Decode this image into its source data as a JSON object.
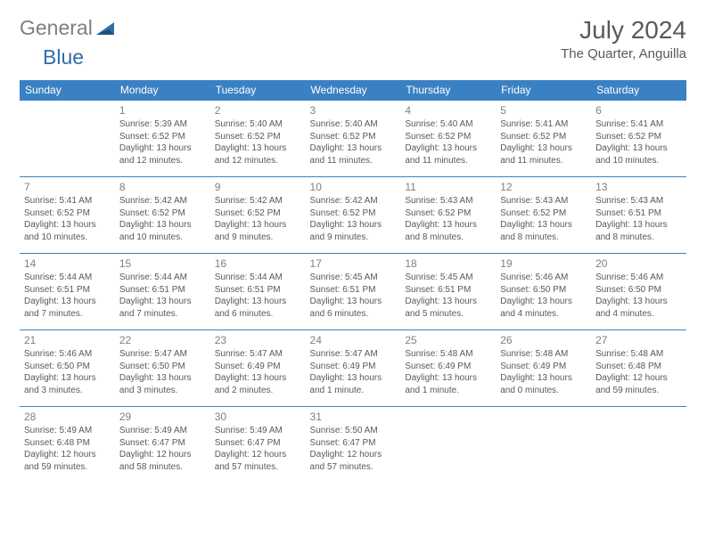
{
  "logo": {
    "word1": "General",
    "word2": "Blue"
  },
  "title": "July 2024",
  "location": "The Quarter, Anguilla",
  "colors": {
    "header_bg": "#3a81c3",
    "header_text": "#ffffff",
    "border": "#3a81c3",
    "text": "#595959",
    "daynum": "#808080",
    "logo_gray": "#7f7f7f",
    "logo_blue": "#2f6eab"
  },
  "weekdays": [
    "Sunday",
    "Monday",
    "Tuesday",
    "Wednesday",
    "Thursday",
    "Friday",
    "Saturday"
  ],
  "weeks": [
    [
      null,
      {
        "n": "1",
        "sr": "5:39 AM",
        "ss": "6:52 PM",
        "dl": "13 hours and 12 minutes."
      },
      {
        "n": "2",
        "sr": "5:40 AM",
        "ss": "6:52 PM",
        "dl": "13 hours and 12 minutes."
      },
      {
        "n": "3",
        "sr": "5:40 AM",
        "ss": "6:52 PM",
        "dl": "13 hours and 11 minutes."
      },
      {
        "n": "4",
        "sr": "5:40 AM",
        "ss": "6:52 PM",
        "dl": "13 hours and 11 minutes."
      },
      {
        "n": "5",
        "sr": "5:41 AM",
        "ss": "6:52 PM",
        "dl": "13 hours and 11 minutes."
      },
      {
        "n": "6",
        "sr": "5:41 AM",
        "ss": "6:52 PM",
        "dl": "13 hours and 10 minutes."
      }
    ],
    [
      {
        "n": "7",
        "sr": "5:41 AM",
        "ss": "6:52 PM",
        "dl": "13 hours and 10 minutes."
      },
      {
        "n": "8",
        "sr": "5:42 AM",
        "ss": "6:52 PM",
        "dl": "13 hours and 10 minutes."
      },
      {
        "n": "9",
        "sr": "5:42 AM",
        "ss": "6:52 PM",
        "dl": "13 hours and 9 minutes."
      },
      {
        "n": "10",
        "sr": "5:42 AM",
        "ss": "6:52 PM",
        "dl": "13 hours and 9 minutes."
      },
      {
        "n": "11",
        "sr": "5:43 AM",
        "ss": "6:52 PM",
        "dl": "13 hours and 8 minutes."
      },
      {
        "n": "12",
        "sr": "5:43 AM",
        "ss": "6:52 PM",
        "dl": "13 hours and 8 minutes."
      },
      {
        "n": "13",
        "sr": "5:43 AM",
        "ss": "6:51 PM",
        "dl": "13 hours and 8 minutes."
      }
    ],
    [
      {
        "n": "14",
        "sr": "5:44 AM",
        "ss": "6:51 PM",
        "dl": "13 hours and 7 minutes."
      },
      {
        "n": "15",
        "sr": "5:44 AM",
        "ss": "6:51 PM",
        "dl": "13 hours and 7 minutes."
      },
      {
        "n": "16",
        "sr": "5:44 AM",
        "ss": "6:51 PM",
        "dl": "13 hours and 6 minutes."
      },
      {
        "n": "17",
        "sr": "5:45 AM",
        "ss": "6:51 PM",
        "dl": "13 hours and 6 minutes."
      },
      {
        "n": "18",
        "sr": "5:45 AM",
        "ss": "6:51 PM",
        "dl": "13 hours and 5 minutes."
      },
      {
        "n": "19",
        "sr": "5:46 AM",
        "ss": "6:50 PM",
        "dl": "13 hours and 4 minutes."
      },
      {
        "n": "20",
        "sr": "5:46 AM",
        "ss": "6:50 PM",
        "dl": "13 hours and 4 minutes."
      }
    ],
    [
      {
        "n": "21",
        "sr": "5:46 AM",
        "ss": "6:50 PM",
        "dl": "13 hours and 3 minutes."
      },
      {
        "n": "22",
        "sr": "5:47 AM",
        "ss": "6:50 PM",
        "dl": "13 hours and 3 minutes."
      },
      {
        "n": "23",
        "sr": "5:47 AM",
        "ss": "6:49 PM",
        "dl": "13 hours and 2 minutes."
      },
      {
        "n": "24",
        "sr": "5:47 AM",
        "ss": "6:49 PM",
        "dl": "13 hours and 1 minute."
      },
      {
        "n": "25",
        "sr": "5:48 AM",
        "ss": "6:49 PM",
        "dl": "13 hours and 1 minute."
      },
      {
        "n": "26",
        "sr": "5:48 AM",
        "ss": "6:49 PM",
        "dl": "13 hours and 0 minutes."
      },
      {
        "n": "27",
        "sr": "5:48 AM",
        "ss": "6:48 PM",
        "dl": "12 hours and 59 minutes."
      }
    ],
    [
      {
        "n": "28",
        "sr": "5:49 AM",
        "ss": "6:48 PM",
        "dl": "12 hours and 59 minutes."
      },
      {
        "n": "29",
        "sr": "5:49 AM",
        "ss": "6:47 PM",
        "dl": "12 hours and 58 minutes."
      },
      {
        "n": "30",
        "sr": "5:49 AM",
        "ss": "6:47 PM",
        "dl": "12 hours and 57 minutes."
      },
      {
        "n": "31",
        "sr": "5:50 AM",
        "ss": "6:47 PM",
        "dl": "12 hours and 57 minutes."
      },
      null,
      null,
      null
    ]
  ],
  "labels": {
    "sunrise": "Sunrise:",
    "sunset": "Sunset:",
    "daylight": "Daylight:"
  }
}
